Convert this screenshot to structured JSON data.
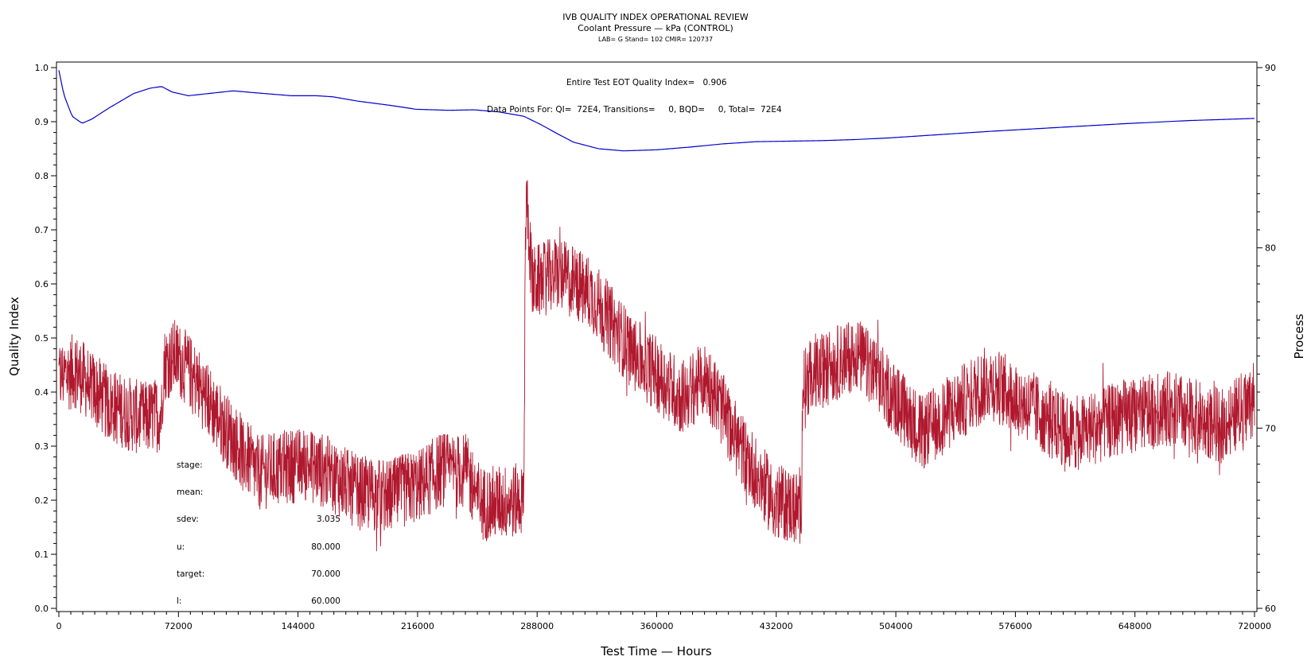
{
  "chart_data": {
    "type": "line",
    "title": "IVB QUALITY INDEX OPERATIONAL REVIEW",
    "subtitle": "Coolant Pressure — kPa (CONTROL)",
    "subtitle2": "LAB= G Stand= 102 CMIR= 120737",
    "xlabel": "Test Time — Hours",
    "ylabel": "Quality Index",
    "y2label": "Process",
    "xlim": [
      0,
      720000
    ],
    "ylim": [
      0.0,
      1.0
    ],
    "y2lim": [
      60,
      90
    ],
    "x_ticks": [
      "0",
      "72000",
      "144000",
      "216000",
      "288000",
      "360000",
      "432000",
      "504000",
      "576000",
      "648000",
      "720000"
    ],
    "y_ticks": [
      "0.0",
      "0.1",
      "0.2",
      "0.3",
      "0.4",
      "0.5",
      "0.6",
      "0.7",
      "0.8",
      "0.9",
      "1.0"
    ],
    "y2_ticks": [
      "60",
      "70",
      "80",
      "90"
    ],
    "grid": false,
    "annotations": {
      "qi_text": "Entire Test EOT Quality Index=   0.906",
      "points_text": "Data Points For: QI=  72E4, Transitions=     0, BQD=     0, Total=  72E4"
    },
    "stats": [
      {
        "label": "stage:",
        "value": ""
      },
      {
        "label": "mean:",
        "value": ""
      },
      {
        "label": "sdev:",
        "value": "3.035"
      },
      {
        "label": "u:",
        "value": "80.000"
      },
      {
        "label": "target:",
        "value": "70.000"
      },
      {
        "label": "l:",
        "value": "60.000"
      }
    ],
    "series": [
      {
        "name": "Quality Index",
        "axis": "left",
        "color": "#0000cc",
        "x": [
          0,
          3000,
          8000,
          14000,
          20000,
          30000,
          45000,
          55000,
          62000,
          68000,
          78000,
          90000,
          105000,
          120000,
          140000,
          155000,
          165000,
          180000,
          200000,
          215000,
          235000,
          250000,
          265000,
          280000,
          290000,
          300000,
          310000,
          325000,
          340000,
          360000,
          380000,
          400000,
          420000,
          440000,
          460000,
          480000,
          500000,
          530000,
          560000,
          600000,
          640000,
          680000,
          720000
        ],
        "y": [
          0.995,
          0.95,
          0.91,
          0.897,
          0.905,
          0.925,
          0.952,
          0.962,
          0.965,
          0.955,
          0.948,
          0.952,
          0.957,
          0.953,
          0.948,
          0.948,
          0.946,
          0.938,
          0.93,
          0.923,
          0.921,
          0.922,
          0.918,
          0.91,
          0.895,
          0.878,
          0.862,
          0.85,
          0.846,
          0.848,
          0.853,
          0.859,
          0.863,
          0.864,
          0.865,
          0.867,
          0.87,
          0.876,
          0.882,
          0.889,
          0.896,
          0.902,
          0.906
        ]
      },
      {
        "name": "Process",
        "axis": "right",
        "color": "#b0182e",
        "x": [
          0,
          10000,
          30000,
          50000,
          62000,
          63000,
          70000,
          80000,
          100000,
          120000,
          140000,
          150000,
          165000,
          180000,
          200000,
          220000,
          230000,
          245000,
          255000,
          280000,
          281000,
          282000,
          285000,
          300000,
          320000,
          345000,
          360000,
          375000,
          390000,
          410000,
          430000,
          447000,
          448000,
          460000,
          480000,
          500000,
          520000,
          545000,
          560000,
          580000,
          610000,
          640000,
          670000,
          700000,
          720000
        ],
        "y": [
          72.8,
          73.2,
          71.3,
          70.5,
          70.8,
          73.5,
          74.0,
          73.0,
          70.0,
          67.5,
          67.9,
          68.0,
          67.4,
          66.4,
          66.2,
          67.0,
          67.7,
          67.6,
          65.8,
          66.0,
          81.5,
          82.5,
          78.0,
          78.6,
          77.5,
          74.2,
          73.0,
          71.7,
          72.8,
          69.0,
          66.0,
          65.5,
          72.5,
          73.2,
          74.2,
          72.0,
          69.7,
          71.5,
          72.6,
          71.5,
          69.6,
          70.6,
          71.1,
          70.1,
          71.6
        ]
      }
    ]
  }
}
